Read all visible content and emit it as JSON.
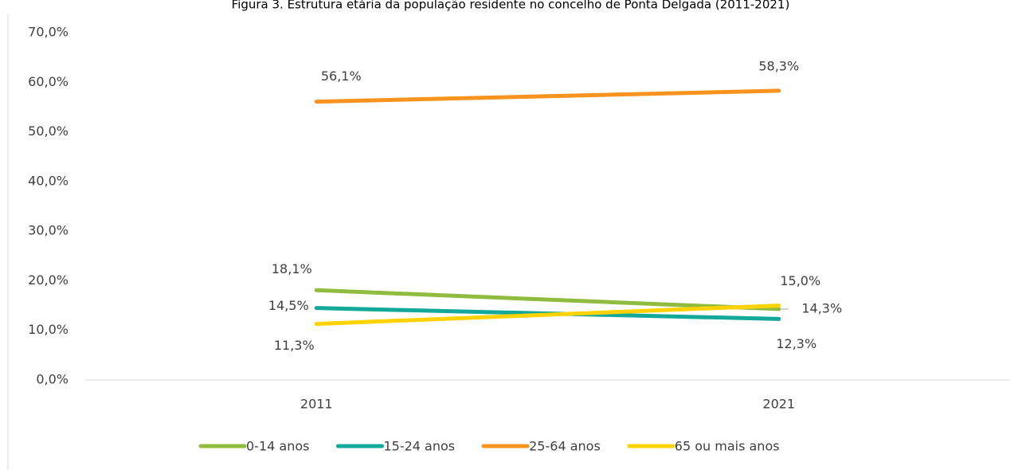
{
  "chart_data": {
    "type": "line",
    "title": "Figura 3. Estrutura etária da população residente no concelho de Ponta Delgada (2011-2021)",
    "categories": [
      "2011",
      "2021"
    ],
    "series": [
      {
        "name": "0-14 anos",
        "color": "#8fbc3f",
        "values": [
          18.1,
          14.3
        ],
        "value_labels": [
          "18,1%",
          "14,3%"
        ]
      },
      {
        "name": "15-24 anos",
        "color": "#13a89a",
        "values": [
          14.5,
          12.3
        ],
        "value_labels": [
          "14,5%",
          "12,3%"
        ]
      },
      {
        "name": "25-64 anos",
        "color": "#f7931e",
        "values": [
          56.1,
          58.3
        ],
        "value_labels": [
          "56,1%",
          "58,3%"
        ]
      },
      {
        "name": "65 ou mais anos",
        "color": "#ffd200",
        "values": [
          11.3,
          15.0
        ],
        "value_labels": [
          "11,3%",
          "15,0%"
        ]
      }
    ],
    "ylim": [
      0,
      70
    ],
    "yticks": [
      {
        "value": 0,
        "label": "0,0%"
      },
      {
        "value": 10,
        "label": "10,0%"
      },
      {
        "value": 20,
        "label": "20,0%"
      },
      {
        "value": 30,
        "label": "30,0%"
      },
      {
        "value": 40,
        "label": "40,0%"
      },
      {
        "value": 50,
        "label": "50,0%"
      },
      {
        "value": 60,
        "label": "60,0%"
      },
      {
        "value": 70,
        "label": "70,0%"
      }
    ],
    "grid": false,
    "legend": "bottom"
  }
}
